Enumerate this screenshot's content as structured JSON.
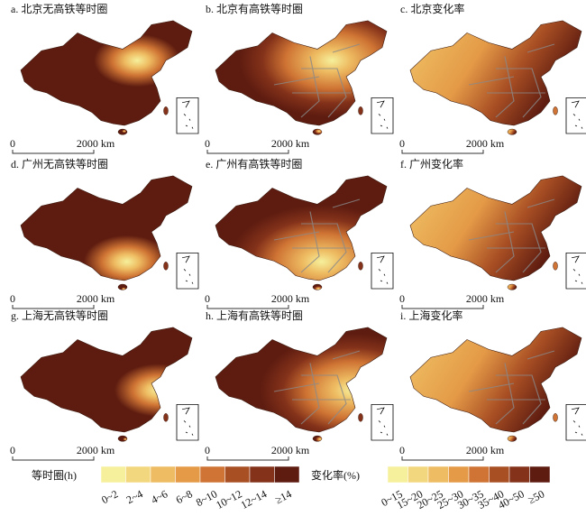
{
  "panels": [
    {
      "title": "a. 北京无高铁等时圈",
      "scale_start": "0",
      "scale_end": "2000 km"
    },
    {
      "title": "b. 北京有高铁等时圈",
      "scale_start": "0",
      "scale_end": "2000 km"
    },
    {
      "title": "c. 北京变化率",
      "scale_start": "0",
      "scale_end": "2000 km"
    },
    {
      "title": "d. 广州无高铁等时圈",
      "scale_start": "0",
      "scale_end": "2000 km"
    },
    {
      "title": "e. 广州有高铁等时圈",
      "scale_start": "0",
      "scale_end": "2000 km"
    },
    {
      "title": "f. 广州变化率",
      "scale_start": "0",
      "scale_end": "2000 km"
    },
    {
      "title": "g. 上海无高铁等时圈",
      "scale_start": "0",
      "scale_end": "2000 km"
    },
    {
      "title": "h. 上海有高铁等时圈",
      "scale_start": "0",
      "scale_end": "2000 km"
    },
    {
      "title": "i. 上海变化率",
      "scale_start": "0",
      "scale_end": "2000 km"
    }
  ],
  "legends": [
    {
      "title": "等时圈(h)",
      "classes": [
        {
          "label": "0~2",
          "color": "#f6f09c"
        },
        {
          "label": "2~4",
          "color": "#f3d77e"
        },
        {
          "label": "4~6",
          "color": "#eebc62"
        },
        {
          "label": "6~8",
          "color": "#e49a47"
        },
        {
          "label": "8~10",
          "color": "#cf7434"
        },
        {
          "label": "10~12",
          "color": "#a94f24"
        },
        {
          "label": "12~14",
          "color": "#84321a"
        },
        {
          "label": "≥14",
          "color": "#5e1c10"
        }
      ]
    },
    {
      "title": "变化率(%)",
      "classes": [
        {
          "label": "0~15",
          "color": "#f6f09c"
        },
        {
          "label": "15~20",
          "color": "#f3d77e"
        },
        {
          "label": "20~25",
          "color": "#eebc62"
        },
        {
          "label": "25~30",
          "color": "#e49a47"
        },
        {
          "label": "30~35",
          "color": "#cf7434"
        },
        {
          "label": "35~40",
          "color": "#a94f24"
        },
        {
          "label": "40~50",
          "color": "#84321a"
        },
        {
          "label": "≥50",
          "color": "#5e1c10"
        }
      ]
    }
  ]
}
